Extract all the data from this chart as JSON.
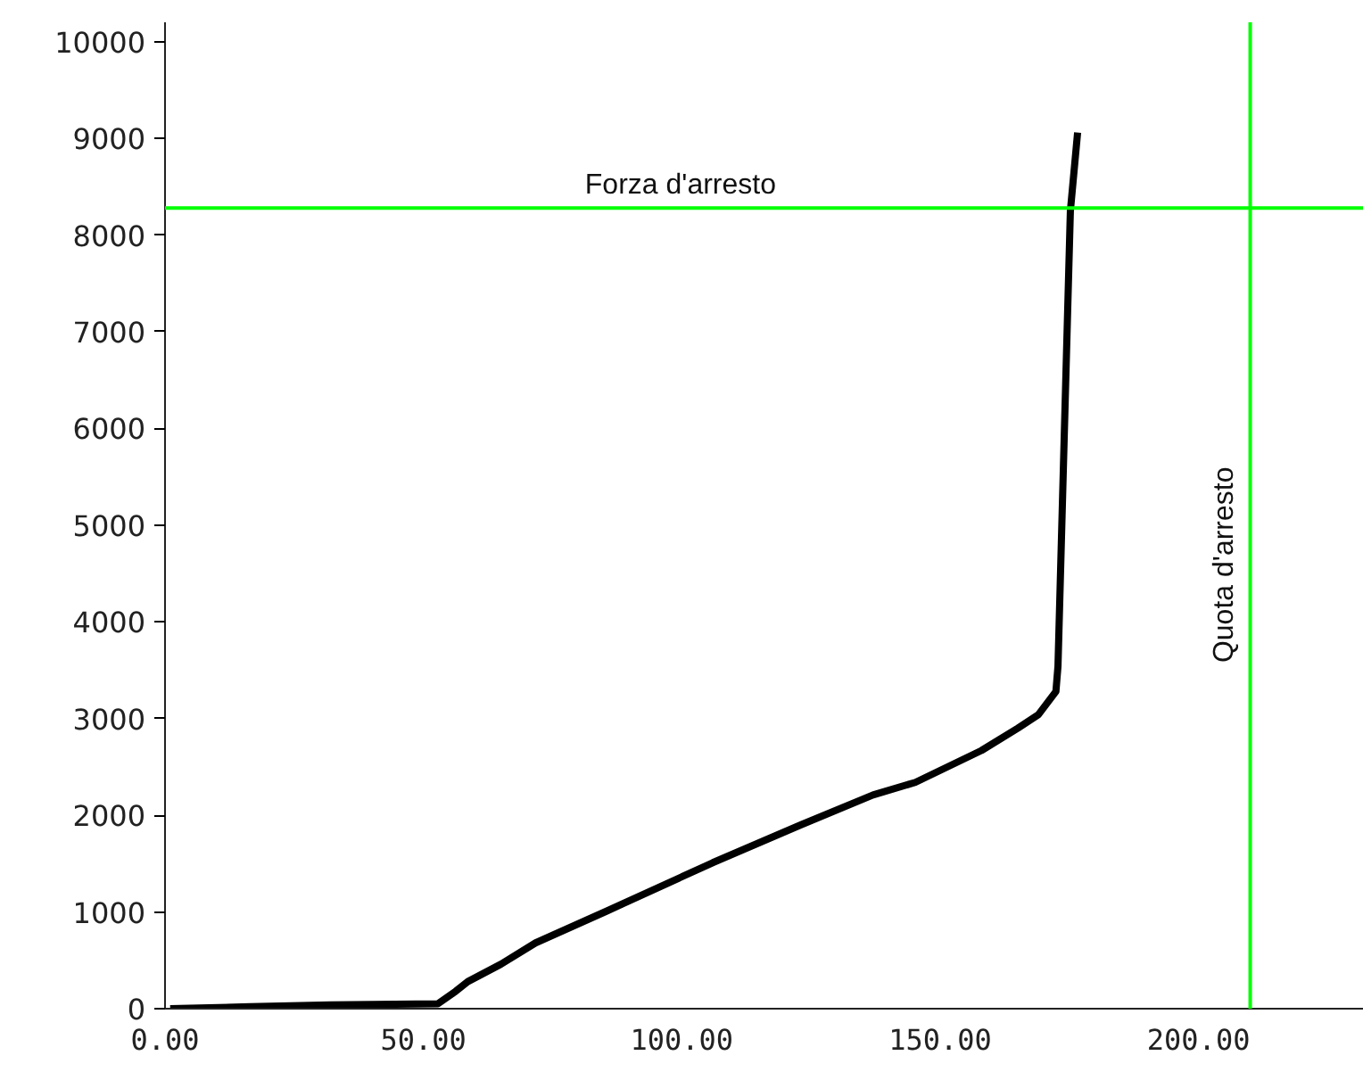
{
  "chart_data": {
    "type": "line",
    "x": [
      1,
      16.5,
      32,
      52.8,
      56,
      58.6,
      65,
      71.7,
      85.5,
      106,
      123,
      137,
      145.2,
      158,
      165,
      169,
      172.4,
      172.8,
      175.2,
      176.6
    ],
    "values": [
      0,
      20,
      40,
      50,
      170,
      280,
      460,
      680,
      1010,
      1510,
      1900,
      2210,
      2340,
      2670,
      2900,
      3040,
      3280,
      3540,
      8250,
      9060
    ],
    "color": "#000000",
    "xlim": [
      0,
      232
    ],
    "ylim": [
      0,
      10200
    ],
    "xticks": [
      {
        "value": 0,
        "label": "0.00"
      },
      {
        "value": 50,
        "label": "50.00"
      },
      {
        "value": 100,
        "label": "100.00"
      },
      {
        "value": 150,
        "label": "150.00"
      },
      {
        "value": 200,
        "label": "200.00"
      }
    ],
    "yticks": [
      0,
      1000,
      2000,
      3000,
      4000,
      5000,
      6000,
      7000,
      8000,
      9000,
      10000
    ],
    "grid": false,
    "marker": "none",
    "line_style": "solid",
    "ref_lines": [
      {
        "axis": "y",
        "value": 8280,
        "label": "Forza d'arresto",
        "color": "#00ff00"
      },
      {
        "axis": "x",
        "value": 210,
        "label": "Quota d'arresto",
        "color": "#00ff00"
      }
    ]
  }
}
